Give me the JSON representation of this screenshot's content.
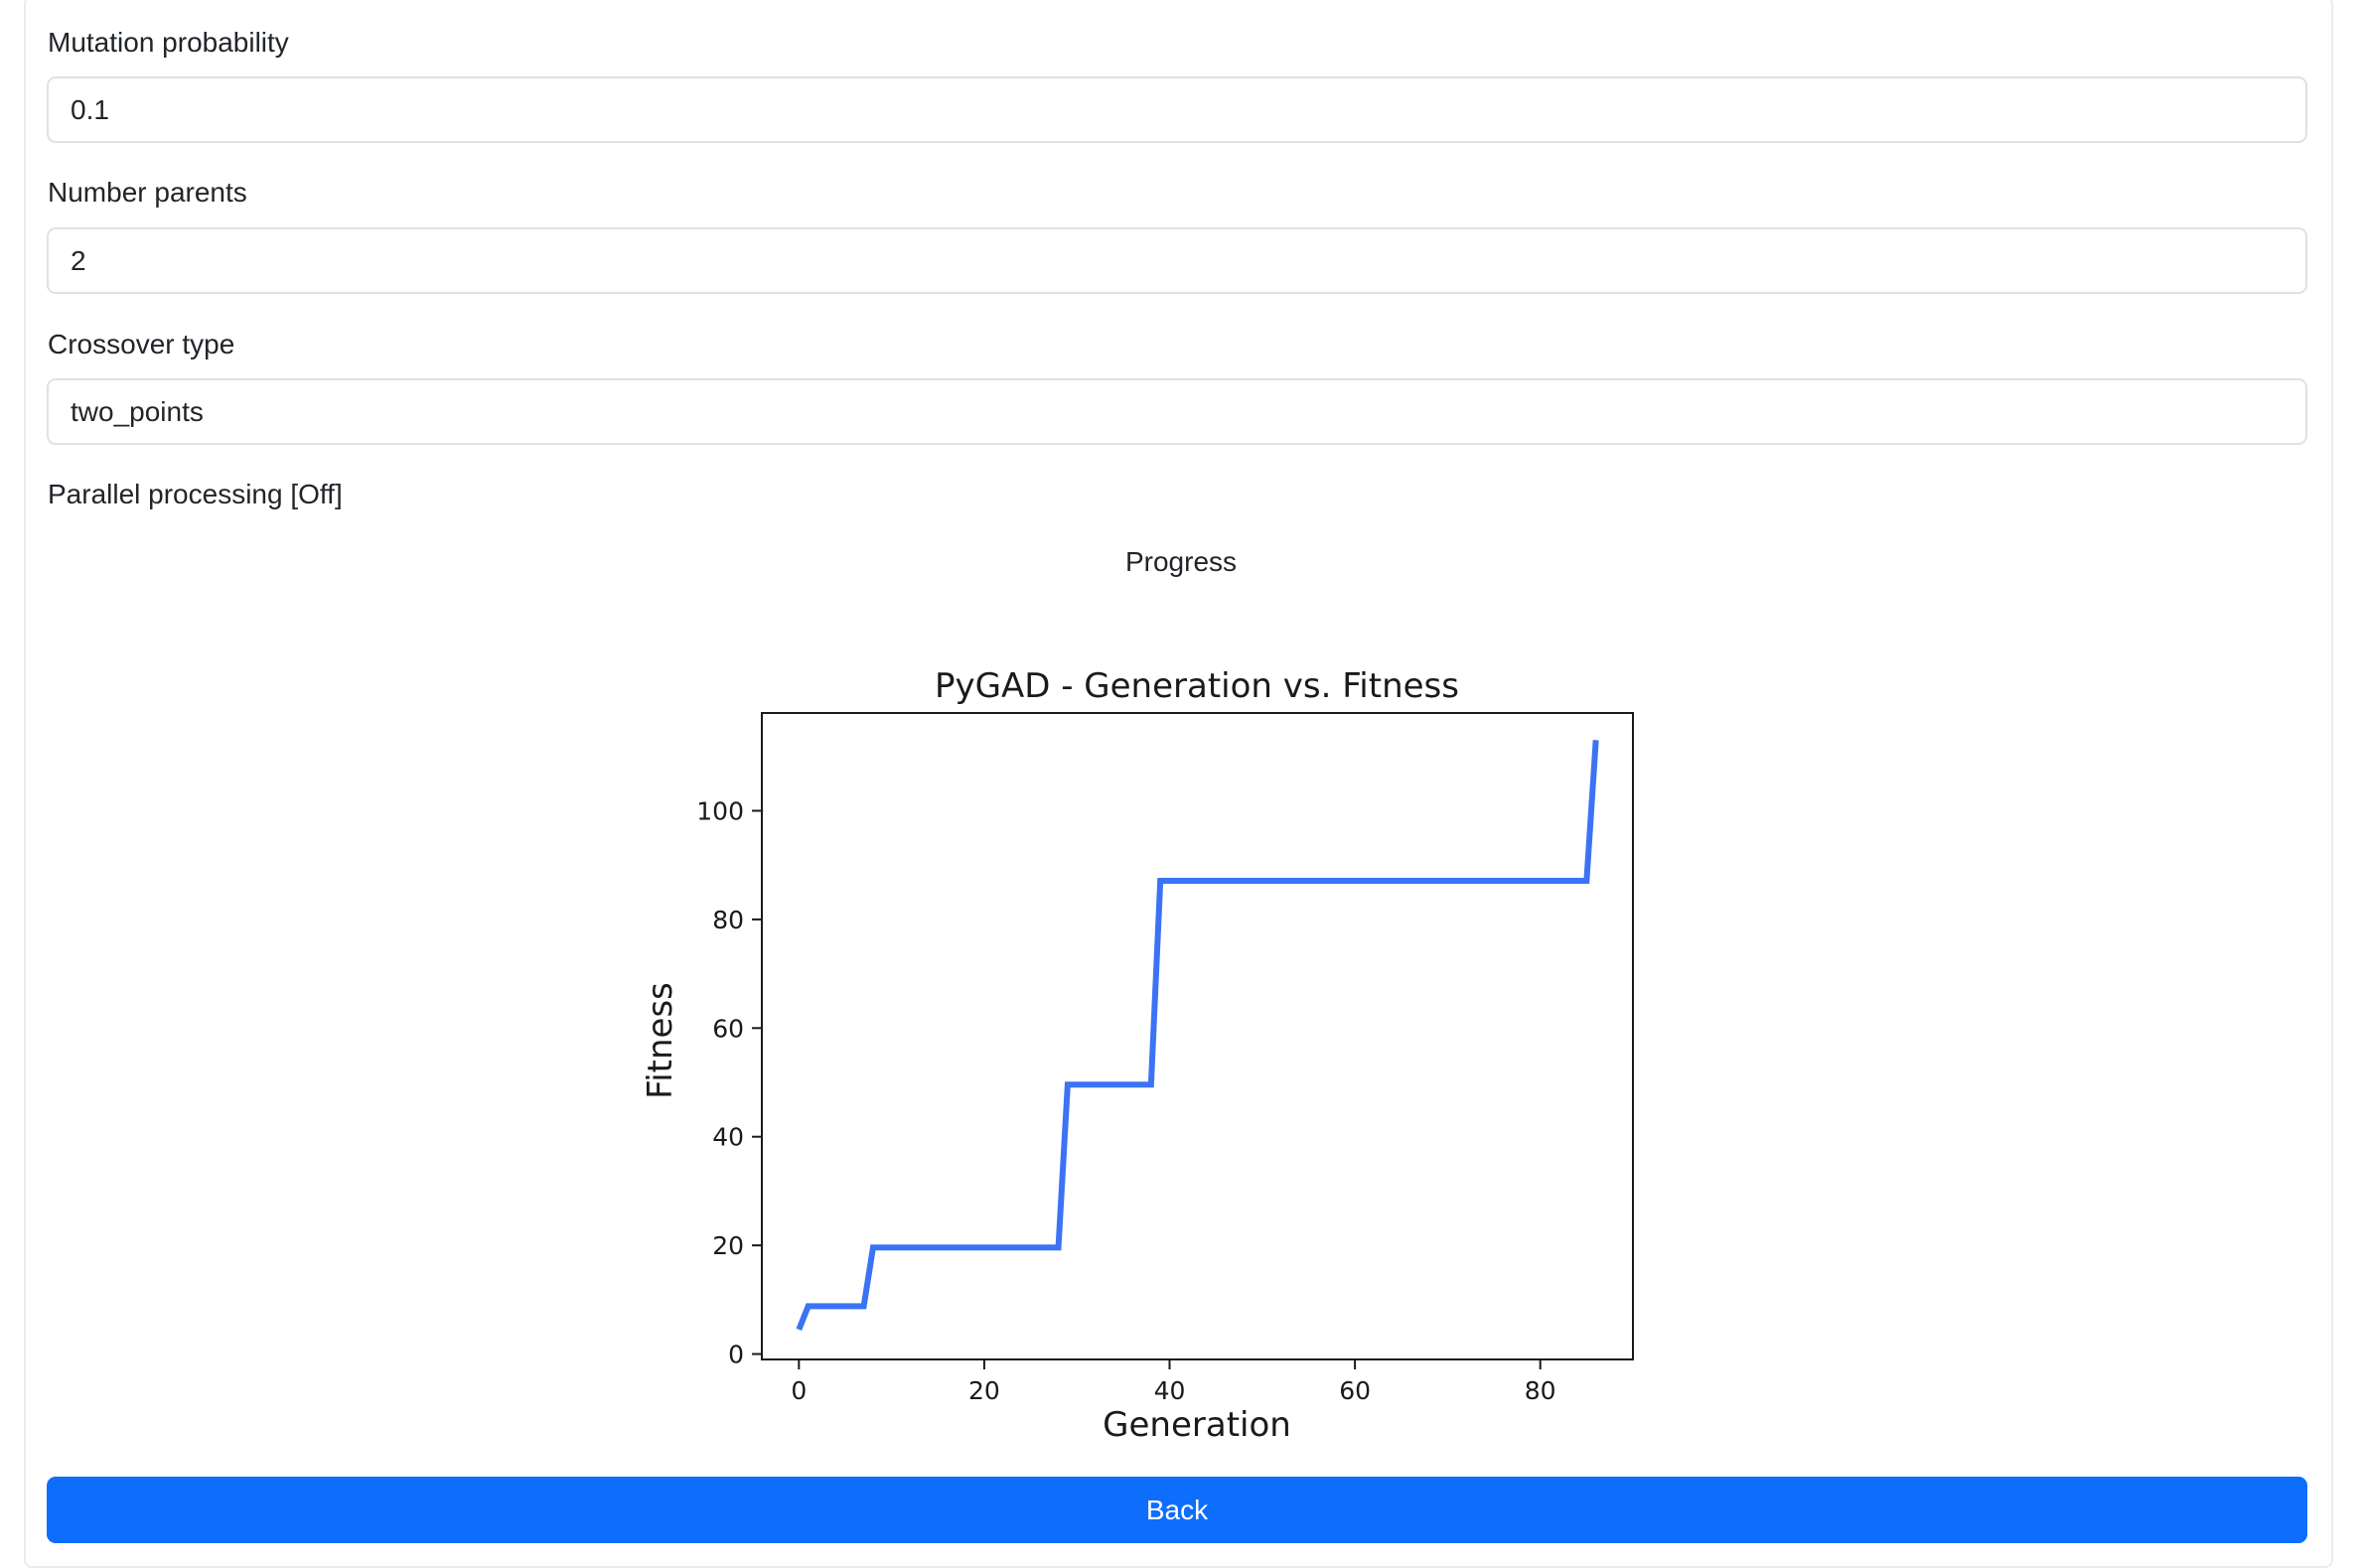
{
  "form": {
    "mutation_probability": {
      "label": "Mutation probability",
      "value": "0.1"
    },
    "number_parents": {
      "label": "Number parents",
      "value": "2"
    },
    "crossover_type": {
      "label": "Crossover type",
      "value": "two_points"
    },
    "parallel_processing": {
      "label": "Parallel processing [Off]"
    }
  },
  "progress": {
    "label": "Progress"
  },
  "chart_data": {
    "type": "line",
    "title": "PyGAD - Generation vs. Fitness",
    "xlabel": "Generation",
    "ylabel": "Fitness",
    "xlim": [
      -4,
      90
    ],
    "ylim": [
      -1,
      118
    ],
    "xticks": [
      0,
      20,
      40,
      60,
      80
    ],
    "yticks": [
      0,
      20,
      40,
      60,
      80,
      100
    ],
    "grid": false,
    "color": "#3b73f5",
    "x": [
      0,
      1,
      7,
      8,
      28,
      29,
      38,
      39,
      85,
      86
    ],
    "y": [
      4.5,
      8.8,
      8.8,
      19.6,
      19.6,
      49.6,
      49.6,
      87.1,
      87.1,
      113
    ]
  },
  "actions": {
    "back_label": "Back"
  },
  "colors": {
    "primary": "#0d6efd",
    "border": "#dee2e6",
    "text": "#212529"
  }
}
